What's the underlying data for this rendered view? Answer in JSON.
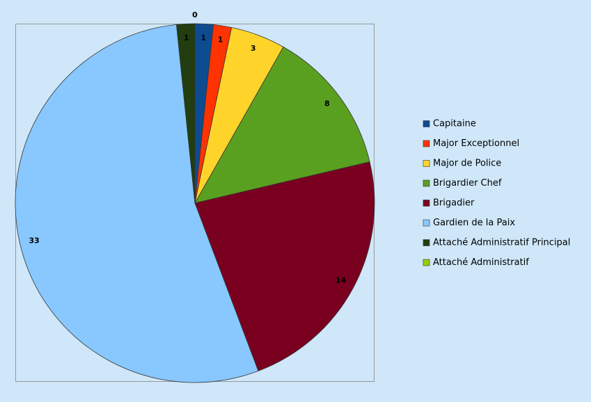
{
  "chart_data": {
    "type": "pie",
    "categories": [
      "Capitaine",
      "Major Exceptionnel",
      "Major de Police",
      "Brigardier Chef",
      "Brigadier",
      "Gardien de la Paix",
      "Attaché Administratif Principal",
      "Attaché Administratif"
    ],
    "values": [
      1,
      1,
      3,
      8,
      14,
      33,
      1,
      0
    ],
    "colors": [
      "#0e4c92",
      "#ff3300",
      "#ffd42a",
      "#5aa020",
      "#7a0020",
      "#88c8ff",
      "#223d10",
      "#99cc00"
    ],
    "legend": "right"
  }
}
